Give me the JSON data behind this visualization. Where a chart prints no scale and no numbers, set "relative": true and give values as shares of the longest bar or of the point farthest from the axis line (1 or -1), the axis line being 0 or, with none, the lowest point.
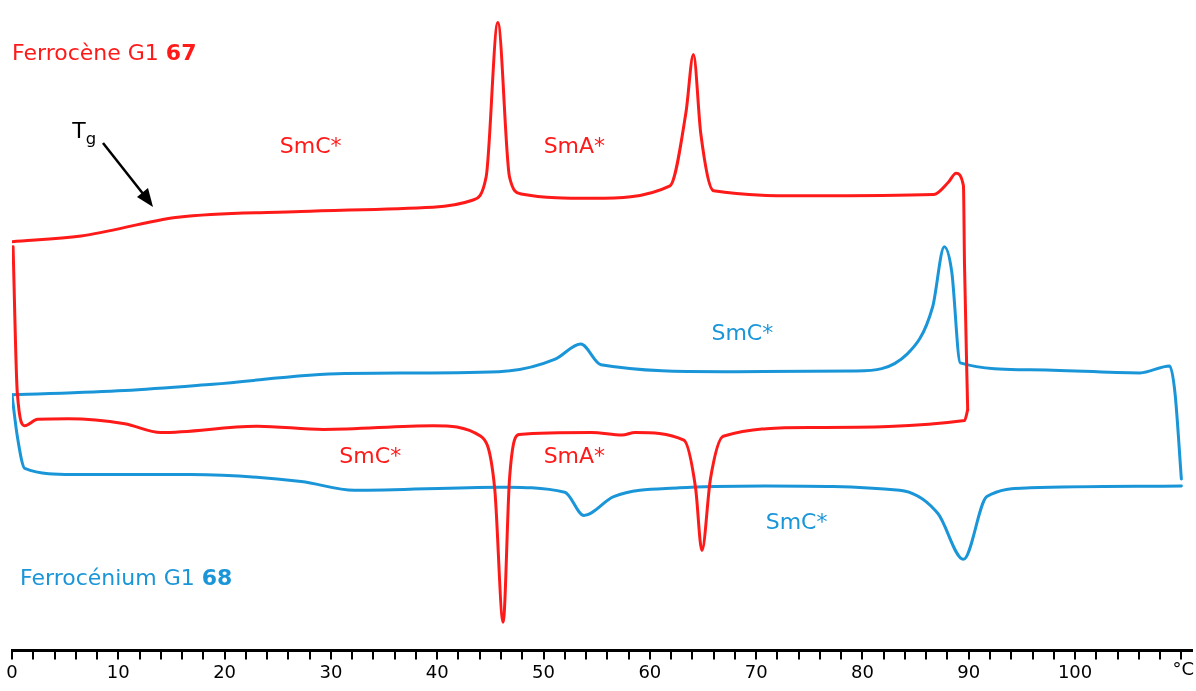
{
  "chart_data": {
    "type": "line",
    "relative": true,
    "xlabel": "°C",
    "xlim": [
      0,
      111
    ],
    "marker": "none",
    "line_style": "solid",
    "grid": false,
    "tick_labels": "x",
    "xticks": [
      0,
      {
        "value": 2,
        "label": null
      },
      {
        "value": 4,
        "label": null
      },
      {
        "value": 6,
        "label": null
      },
      {
        "value": 8,
        "label": null
      },
      10,
      {
        "value": 12,
        "label": null
      },
      {
        "value": 14,
        "label": null
      },
      {
        "value": 16,
        "label": null
      },
      {
        "value": 18,
        "label": null
      },
      20,
      {
        "value": 22,
        "label": null
      },
      {
        "value": 24,
        "label": null
      },
      {
        "value": 26,
        "label": null
      },
      {
        "value": 28,
        "label": null
      },
      30,
      {
        "value": 32,
        "label": null
      },
      {
        "value": 34,
        "label": null
      },
      {
        "value": 36,
        "label": null
      },
      {
        "value": 38,
        "label": null
      },
      40,
      {
        "value": 42,
        "label": null
      },
      {
        "value": 44,
        "label": null
      },
      {
        "value": 46,
        "label": null
      },
      {
        "value": 48,
        "label": null
      },
      50,
      {
        "value": 52,
        "label": null
      },
      {
        "value": 54,
        "label": null
      },
      {
        "value": 56,
        "label": null
      },
      {
        "value": 58,
        "label": null
      },
      60,
      {
        "value": 62,
        "label": null
      },
      {
        "value": 64,
        "label": null
      },
      {
        "value": 66,
        "label": null
      },
      {
        "value": 68,
        "label": null
      },
      70,
      {
        "value": 72,
        "label": null
      },
      {
        "value": 74,
        "label": null
      },
      {
        "value": 76,
        "label": null
      },
      {
        "value": 78,
        "label": null
      },
      80,
      {
        "value": 82,
        "label": null
      },
      {
        "value": 84,
        "label": null
      },
      {
        "value": 86,
        "label": null
      },
      {
        "value": 88,
        "label": null
      },
      90,
      {
        "value": 92,
        "label": null
      },
      {
        "value": 94,
        "label": null
      },
      {
        "value": 96,
        "label": null
      },
      {
        "value": 98,
        "label": null
      },
      100,
      {
        "value": 102,
        "label": null
      },
      {
        "value": 104,
        "label": null
      },
      {
        "value": 106,
        "label": null
      },
      {
        "value": 108,
        "label": null
      },
      {
        "value": 110,
        "label": null
      }
    ],
    "series": [
      {
        "name": "Ferrocène G1 67",
        "color": "#ff1a1a",
        "x": [
          0,
          6.5,
          15.6,
          27.2,
          39.6,
          43.3,
          44.6,
          45.7,
          46.8,
          47.9,
          54.5,
          61.9,
          63.4,
          64.1,
          64.8,
          66.0,
          75.1,
          86.7,
          88.1,
          88.8,
          89.5,
          89.6,
          89.9
        ],
        "values": [
          0.651,
          0.66,
          0.69,
          0.699,
          0.706,
          0.717,
          0.754,
          1.0,
          0.754,
          0.727,
          0.72,
          0.74,
          0.857,
          0.949,
          0.822,
          0.732,
          0.724,
          0.726,
          0.746,
          0.76,
          0.74,
          0.615,
          0.383
        ]
      },
      {
        "color": "#ff1a1a",
        "x": [
          0.1,
          0.5,
          1.2,
          2.4,
          5.3,
          10.6,
          14.0,
          23.1,
          29.3,
          39.6,
          44.1,
          45.4,
          46.2,
          46.8,
          47.7,
          54.5,
          57.4,
          58.6,
          63.2,
          64.3,
          64.9,
          65.7,
          66.9,
          75.1,
          89.6,
          89.9
        ],
        "values": [
          0.643,
          0.41,
          0.358,
          0.368,
          0.369,
          0.361,
          0.347,
          0.357,
          0.352,
          0.358,
          0.341,
          0.259,
          0.045,
          0.273,
          0.344,
          0.347,
          0.343,
          0.347,
          0.335,
          0.259,
          0.159,
          0.273,
          0.341,
          0.355,
          0.366,
          0.383
        ]
      },
      {
        "name": "Ferrocénium G1 68",
        "color": "#1a96d8",
        "x": [
          0,
          10.6,
          18.9,
          31.3,
          45.8,
          51.1,
          53.5,
          55.4,
          66.9,
          79.3,
          84.2,
          86.6,
          87.7,
          88.4,
          89.2,
          95.8,
          106.1,
          108.9,
          109.4,
          110.0
        ],
        "values": [
          0.407,
          0.414,
          0.424,
          0.441,
          0.444,
          0.464,
          0.488,
          0.455,
          0.444,
          0.445,
          0.472,
          0.547,
          0.643,
          0.603,
          0.458,
          0.447,
          0.442,
          0.453,
          0.41,
          0.273
        ]
      },
      {
        "color": "#1a96d8",
        "x": [
          0,
          0.5,
          1.2,
          5.7,
          16.8,
          27.2,
          32.2,
          45.8,
          52.0,
          53.8,
          56.6,
          62.8,
          71.0,
          83.5,
          87.1,
          89.5,
          91.7,
          95.8,
          110.0
        ],
        "values": [
          0.407,
          0.341,
          0.29,
          0.28,
          0.28,
          0.269,
          0.255,
          0.26,
          0.252,
          0.215,
          0.245,
          0.259,
          0.262,
          0.255,
          0.218,
          0.145,
          0.245,
          0.259,
          0.262
        ]
      }
    ],
    "annotations": [
      "T$_{g}$",
      "SmC*",
      "SmA*",
      "SmC*",
      "SmC*",
      "SmA*",
      "SmC*"
    ]
  }
}
